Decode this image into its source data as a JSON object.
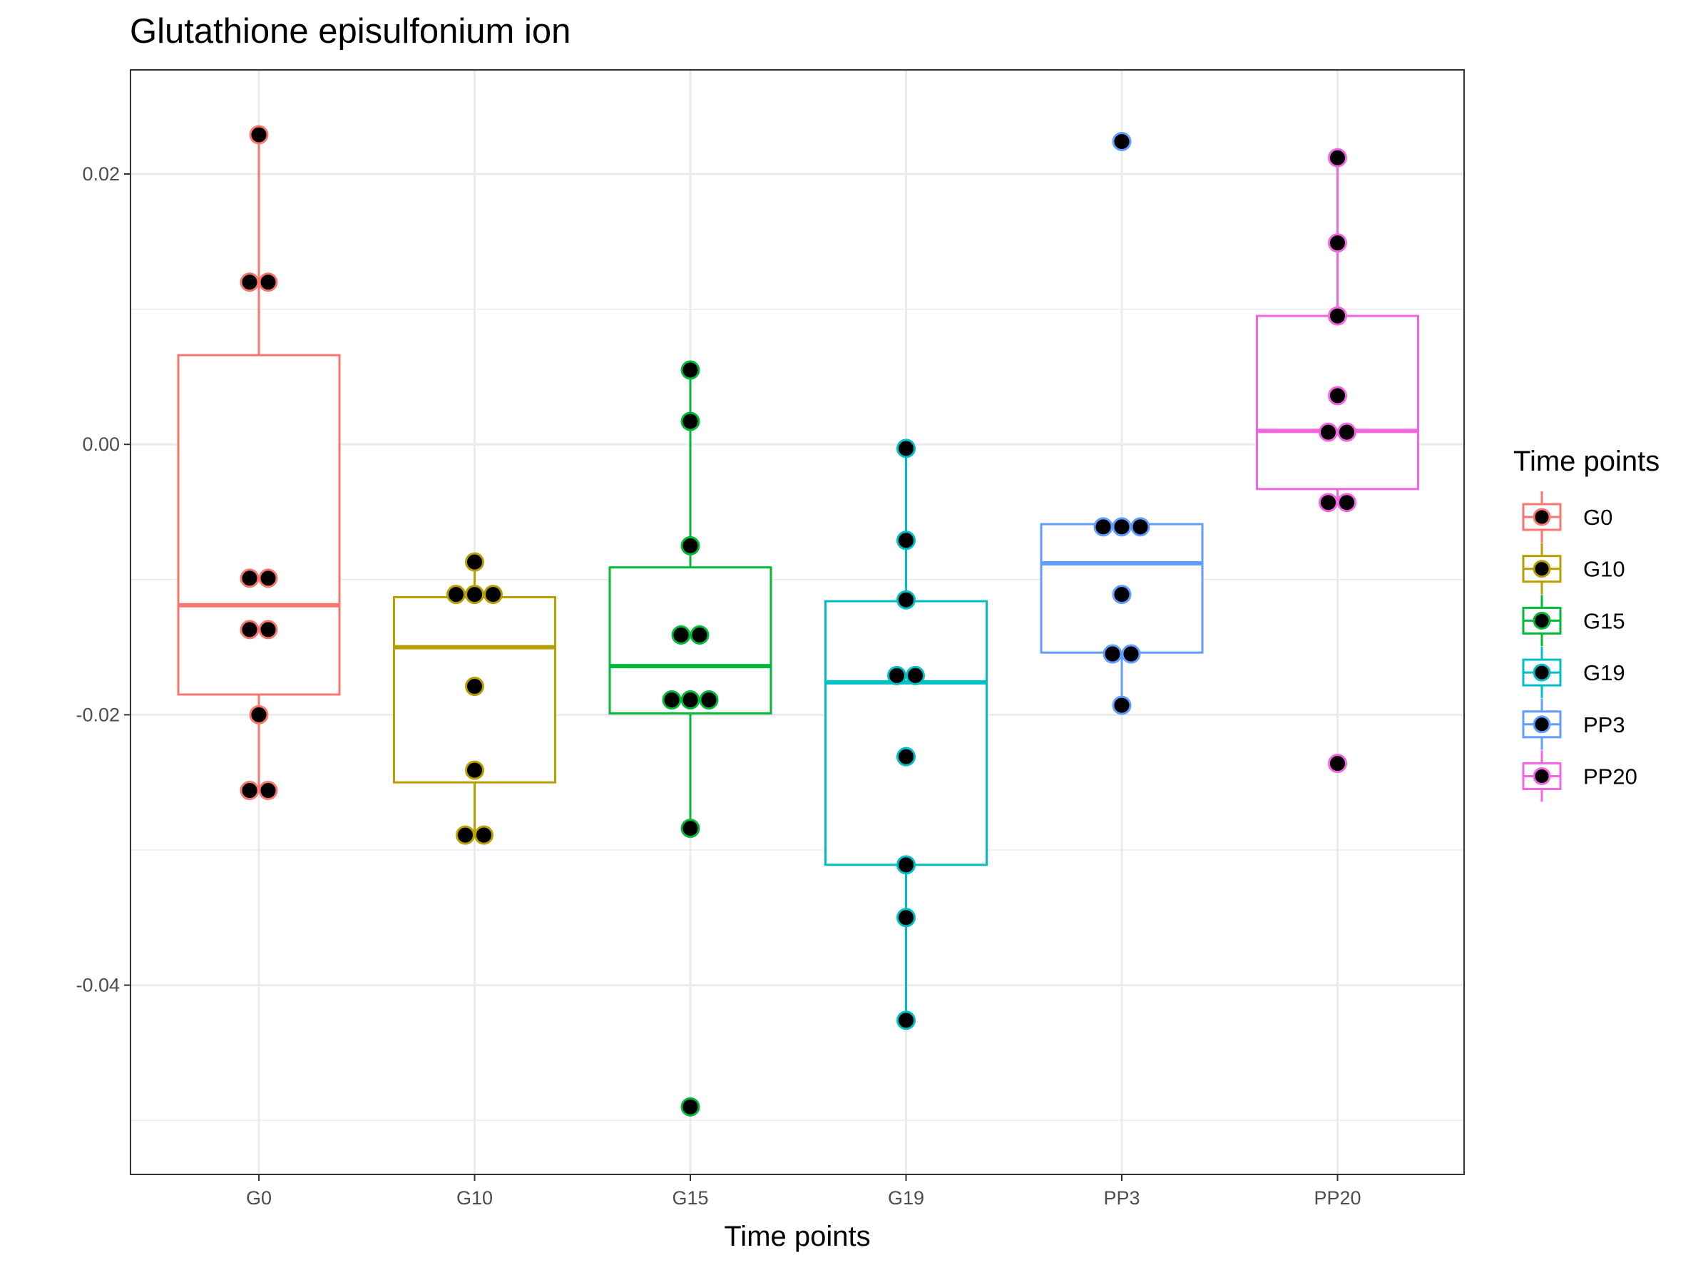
{
  "chart_data": {
    "type": "box",
    "title": "Glutathione episulfonium ion",
    "xlabel": "Time points",
    "ylabel": "",
    "ylim": [
      -0.054,
      0.0277
    ],
    "yticks": [
      "0.02",
      "0.00",
      "-0.02",
      "-0.04"
    ],
    "ytick_values": [
      0.02,
      0.0,
      -0.02,
      -0.04
    ],
    "grid": true,
    "legend": {
      "title": "Time points",
      "position": "right"
    },
    "categories": [
      "G0",
      "G10",
      "G15",
      "G19",
      "PP3",
      "PP20"
    ],
    "series": [
      {
        "name": "G0",
        "color": "#F8766D",
        "box": {
          "min": -0.0256,
          "q1": -0.0185,
          "median": -0.0119,
          "q3": 0.0066,
          "max": 0.0229
        },
        "points": [
          0.0229,
          0.012,
          0.012,
          -0.0099,
          -0.0099,
          -0.0137,
          -0.0137,
          -0.02,
          -0.0256,
          -0.0256
        ]
      },
      {
        "name": "G10",
        "color": "#B79F00",
        "box": {
          "min": -0.0289,
          "q1": -0.025,
          "median": -0.015,
          "q3": -0.0113,
          "max": -0.0087
        },
        "points": [
          -0.0087,
          -0.0111,
          -0.0111,
          -0.0111,
          -0.0179,
          -0.0241,
          -0.0289,
          -0.0289
        ]
      },
      {
        "name": "G15",
        "color": "#00BA38",
        "box": {
          "min": -0.0284,
          "q1": -0.0199,
          "median": -0.0164,
          "q3": -0.0091,
          "max": 0.0055
        },
        "points": [
          0.0055,
          0.0017,
          -0.0075,
          -0.0141,
          -0.0141,
          -0.0189,
          -0.0189,
          -0.0189,
          -0.0284,
          -0.049
        ]
      },
      {
        "name": "G19",
        "color": "#00BFC4",
        "box": {
          "min": -0.0426,
          "q1": -0.0311,
          "median": -0.0176,
          "q3": -0.0116,
          "max": -0.0003
        },
        "points": [
          -0.0003,
          -0.0071,
          -0.0115,
          -0.0171,
          -0.0171,
          -0.0231,
          -0.0311,
          -0.035,
          -0.0426
        ]
      },
      {
        "name": "PP3",
        "color": "#619CFF",
        "box": {
          "min": -0.0193,
          "q1": -0.0154,
          "median": -0.0088,
          "q3": -0.0059,
          "max": -0.0059
        },
        "points": [
          0.0224,
          -0.0061,
          -0.0061,
          -0.0061,
          -0.0111,
          -0.0155,
          -0.0155,
          -0.0193
        ]
      },
      {
        "name": "PP20",
        "color": "#F564E3",
        "box": {
          "min": -0.0043,
          "q1": -0.0033,
          "median": 0.001,
          "q3": 0.0095,
          "max": 0.0212
        },
        "points": [
          0.0212,
          0.0149,
          0.0095,
          0.0036,
          0.0009,
          0.0009,
          -0.0043,
          -0.0043,
          -0.0236
        ]
      }
    ]
  }
}
